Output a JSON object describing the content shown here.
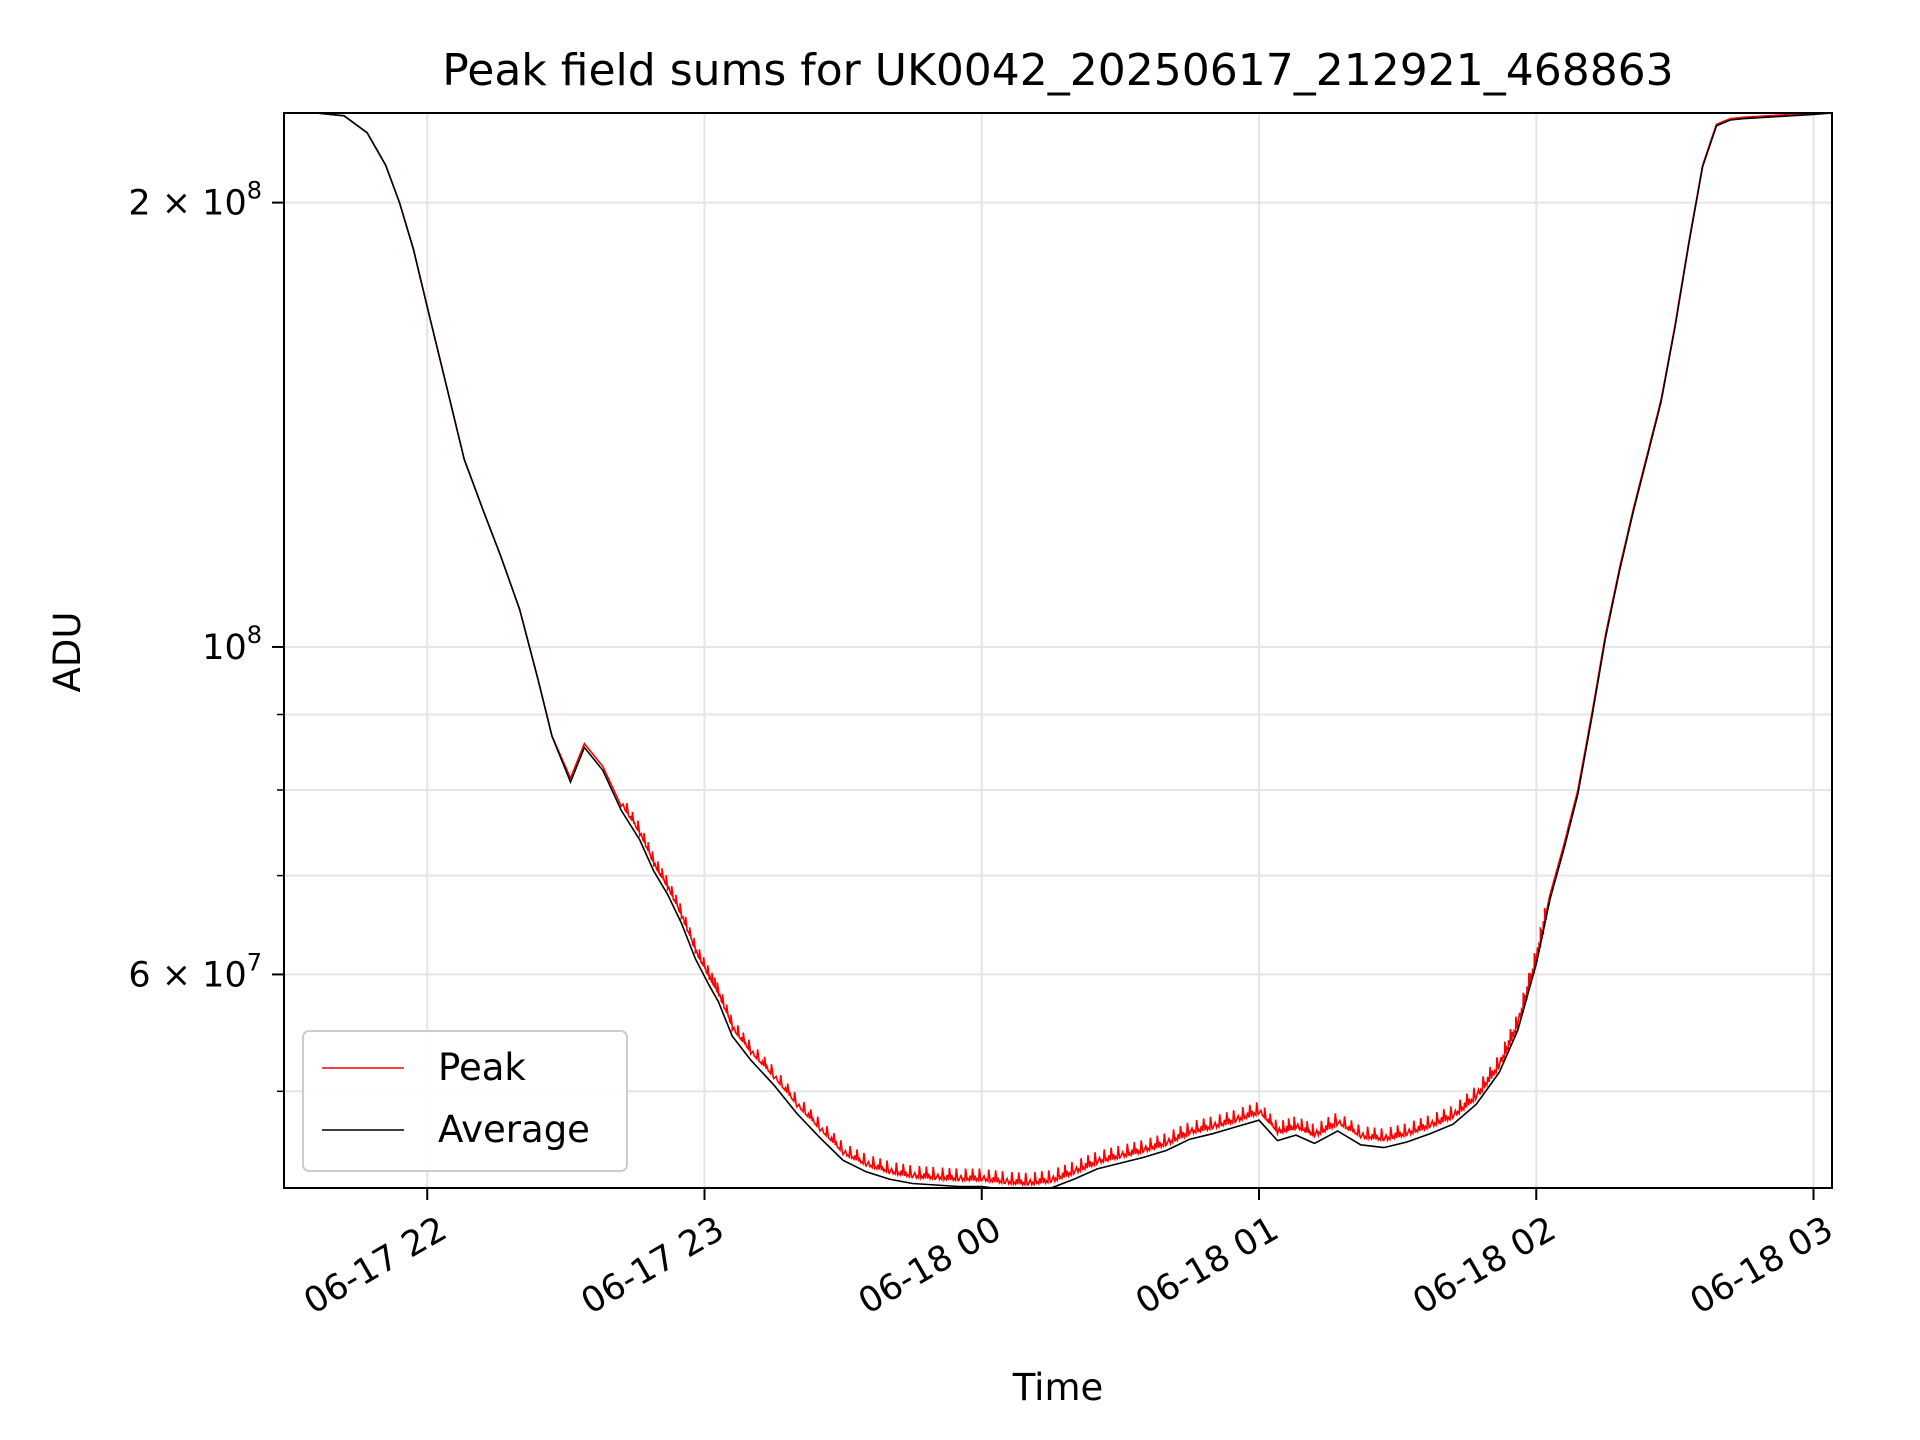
{
  "chart_data": {
    "type": "line",
    "title": "Peak field sums for UK0042_20250617_212921_468863",
    "xlabel": "Time",
    "ylabel": "ADU",
    "yscale": "log",
    "grid": true,
    "legend_position": "lower-left",
    "xlim": [
      "2025-06-17 21:29",
      "2025-06-18 03:04"
    ],
    "ylim": [
      43000000,
      230000000
    ],
    "x_ticks": [
      {
        "value": "2025-06-17 22:00",
        "label": "06-17 22"
      },
      {
        "value": "2025-06-17 23:00",
        "label": "06-17 23"
      },
      {
        "value": "2025-06-18 00:00",
        "label": "06-18 00"
      },
      {
        "value": "2025-06-18 01:00",
        "label": "06-18 01"
      },
      {
        "value": "2025-06-18 02:00",
        "label": "06-18 02"
      },
      {
        "value": "2025-06-18 03:00",
        "label": "06-18 03"
      }
    ],
    "y_major_ticks": [
      {
        "value": 100000000,
        "label": "10",
        "exp": "8"
      },
      {
        "value": 200000000,
        "label": "2 × 10",
        "exp": "8"
      },
      {
        "value": 60000000,
        "label": "6 × 10",
        "exp": "7"
      }
    ],
    "y_minor_ticks": [
      50000000,
      70000000,
      80000000,
      90000000
    ],
    "series": [
      {
        "name": "Peak",
        "color": "#ff0000",
        "x": [
          "2025-06-17 21:29",
          "2025-06-17 21:36",
          "2025-06-17 21:42",
          "2025-06-17 21:47",
          "2025-06-17 21:51",
          "2025-06-17 21:54",
          "2025-06-17 21:57",
          "2025-06-17 22:00",
          "2025-06-17 22:04",
          "2025-06-17 22:08",
          "2025-06-17 22:12",
          "2025-06-17 22:16",
          "2025-06-17 22:20",
          "2025-06-17 22:24",
          "2025-06-17 22:27",
          "2025-06-17 22:31",
          "2025-06-17 22:34",
          "2025-06-17 22:38",
          "2025-06-17 22:42",
          "2025-06-17 22:46",
          "2025-06-17 22:49",
          "2025-06-17 22:52",
          "2025-06-17 22:55",
          "2025-06-17 22:58",
          "2025-06-17 23:01",
          "2025-06-17 23:03",
          "2025-06-17 23:06",
          "2025-06-17 23:10",
          "2025-06-17 23:15",
          "2025-06-17 23:20",
          "2025-06-17 23:25",
          "2025-06-17 23:30",
          "2025-06-17 23:35",
          "2025-06-17 23:40",
          "2025-06-17 23:45",
          "2025-06-17 23:50",
          "2025-06-17 23:55",
          "2025-06-18 00:00",
          "2025-06-18 00:05",
          "2025-06-18 00:10",
          "2025-06-18 00:15",
          "2025-06-18 00:20",
          "2025-06-18 00:25",
          "2025-06-18 00:30",
          "2025-06-18 00:35",
          "2025-06-18 00:40",
          "2025-06-18 00:45",
          "2025-06-18 00:50",
          "2025-06-18 00:55",
          "2025-06-18 01:00",
          "2025-06-18 01:04",
          "2025-06-18 01:08",
          "2025-06-18 01:12",
          "2025-06-18 01:17",
          "2025-06-18 01:22",
          "2025-06-18 01:27",
          "2025-06-18 01:32",
          "2025-06-18 01:37",
          "2025-06-18 01:42",
          "2025-06-18 01:47",
          "2025-06-18 01:52",
          "2025-06-18 01:56",
          "2025-06-18 02:00",
          "2025-06-18 02:03",
          "2025-06-18 02:06",
          "2025-06-18 02:09",
          "2025-06-18 02:12",
          "2025-06-18 02:15",
          "2025-06-18 02:18",
          "2025-06-18 02:21",
          "2025-06-18 02:24",
          "2025-06-18 02:27",
          "2025-06-18 02:30",
          "2025-06-18 02:33",
          "2025-06-18 02:36",
          "2025-06-18 02:39",
          "2025-06-18 02:42",
          "2025-06-18 02:45",
          "2025-06-18 02:50",
          "2025-06-18 02:55",
          "2025-06-18 03:00",
          "2025-06-18 03:04"
        ],
        "y": [
          230000000,
          230000000,
          229000000,
          223000000,
          212000000,
          200000000,
          186000000,
          170000000,
          151000000,
          134000000,
          124000000,
          115000000,
          106000000,
          95000000,
          87000000,
          81500000,
          86000000,
          83000000,
          78000000,
          74500000,
          71000000,
          68500000,
          65500000,
          62000000,
          59500000,
          58000000,
          55000000,
          53000000,
          51000000,
          48800000,
          47000000,
          45300000,
          44500000,
          44000000,
          43700000,
          43600000,
          43500000,
          43500000,
          43300000,
          43200000,
          43400000,
          44000000,
          44700000,
          45100000,
          45500000,
          46000000,
          46800000,
          47200000,
          47700000,
          48300000,
          46800000,
          47200000,
          46600000,
          47500000,
          46500000,
          46300000,
          46700000,
          47300000,
          48000000,
          49500000,
          52000000,
          55500000,
          61500000,
          68000000,
          73500000,
          80000000,
          90000000,
          102000000,
          113000000,
          124000000,
          135000000,
          147000000,
          165000000,
          188000000,
          212000000,
          226000000,
          228000000,
          228500000,
          229000000,
          229500000,
          230000000,
          230000000
        ],
        "spikes": true
      },
      {
        "name": "Average",
        "color": "#000000",
        "x": [
          "2025-06-17 21:29",
          "2025-06-17 21:36",
          "2025-06-17 21:42",
          "2025-06-17 21:47",
          "2025-06-17 21:51",
          "2025-06-17 21:54",
          "2025-06-17 21:57",
          "2025-06-17 22:00",
          "2025-06-17 22:04",
          "2025-06-17 22:08",
          "2025-06-17 22:12",
          "2025-06-17 22:16",
          "2025-06-17 22:20",
          "2025-06-17 22:24",
          "2025-06-17 22:27",
          "2025-06-17 22:31",
          "2025-06-17 22:34",
          "2025-06-17 22:38",
          "2025-06-17 22:42",
          "2025-06-17 22:46",
          "2025-06-17 22:49",
          "2025-06-17 22:52",
          "2025-06-17 22:55",
          "2025-06-17 22:58",
          "2025-06-17 23:01",
          "2025-06-17 23:03",
          "2025-06-17 23:06",
          "2025-06-17 23:10",
          "2025-06-17 23:15",
          "2025-06-17 23:20",
          "2025-06-17 23:25",
          "2025-06-17 23:30",
          "2025-06-17 23:35",
          "2025-06-17 23:40",
          "2025-06-17 23:45",
          "2025-06-17 23:50",
          "2025-06-17 23:55",
          "2025-06-18 00:00",
          "2025-06-18 00:05",
          "2025-06-18 00:10",
          "2025-06-18 00:15",
          "2025-06-18 00:20",
          "2025-06-18 00:25",
          "2025-06-18 00:30",
          "2025-06-18 00:35",
          "2025-06-18 00:40",
          "2025-06-18 00:45",
          "2025-06-18 00:50",
          "2025-06-18 00:55",
          "2025-06-18 01:00",
          "2025-06-18 01:04",
          "2025-06-18 01:08",
          "2025-06-18 01:12",
          "2025-06-18 01:17",
          "2025-06-18 01:22",
          "2025-06-18 01:27",
          "2025-06-18 01:32",
          "2025-06-18 01:37",
          "2025-06-18 01:42",
          "2025-06-18 01:47",
          "2025-06-18 01:52",
          "2025-06-18 01:56",
          "2025-06-18 02:00",
          "2025-06-18 02:03",
          "2025-06-18 02:06",
          "2025-06-18 02:09",
          "2025-06-18 02:12",
          "2025-06-18 02:15",
          "2025-06-18 02:18",
          "2025-06-18 02:21",
          "2025-06-18 02:24",
          "2025-06-18 02:27",
          "2025-06-18 02:30",
          "2025-06-18 02:33",
          "2025-06-18 02:36",
          "2025-06-18 02:39",
          "2025-06-18 02:42",
          "2025-06-18 02:45",
          "2025-06-18 02:50",
          "2025-06-18 02:55",
          "2025-06-18 03:00",
          "2025-06-18 03:04"
        ],
        "y": [
          230000000,
          230000000,
          229000000,
          223000000,
          212000000,
          200000000,
          186000000,
          170000000,
          151000000,
          134000000,
          124000000,
          115000000,
          106000000,
          95000000,
          87000000,
          81000000,
          85500000,
          82500000,
          77500000,
          74000000,
          70500000,
          68000000,
          65000000,
          61500000,
          59000000,
          57500000,
          54500000,
          52500000,
          50500000,
          48300000,
          46500000,
          44900000,
          44100000,
          43600000,
          43300000,
          43200000,
          43100000,
          43100000,
          42900000,
          42800000,
          43000000,
          43600000,
          44300000,
          44700000,
          45100000,
          45600000,
          46400000,
          46800000,
          47300000,
          47800000,
          46300000,
          46700000,
          46100000,
          47000000,
          46000000,
          45800000,
          46200000,
          46800000,
          47500000,
          49000000,
          51500000,
          55000000,
          61000000,
          67500000,
          73000000,
          79500000,
          89500000,
          101500000,
          112500000,
          123500000,
          134500000,
          146500000,
          164500000,
          187500000,
          211500000,
          225500000,
          227500000,
          228000000,
          228500000,
          229000000,
          229500000,
          230000000
        ],
        "spikes": false
      }
    ]
  }
}
